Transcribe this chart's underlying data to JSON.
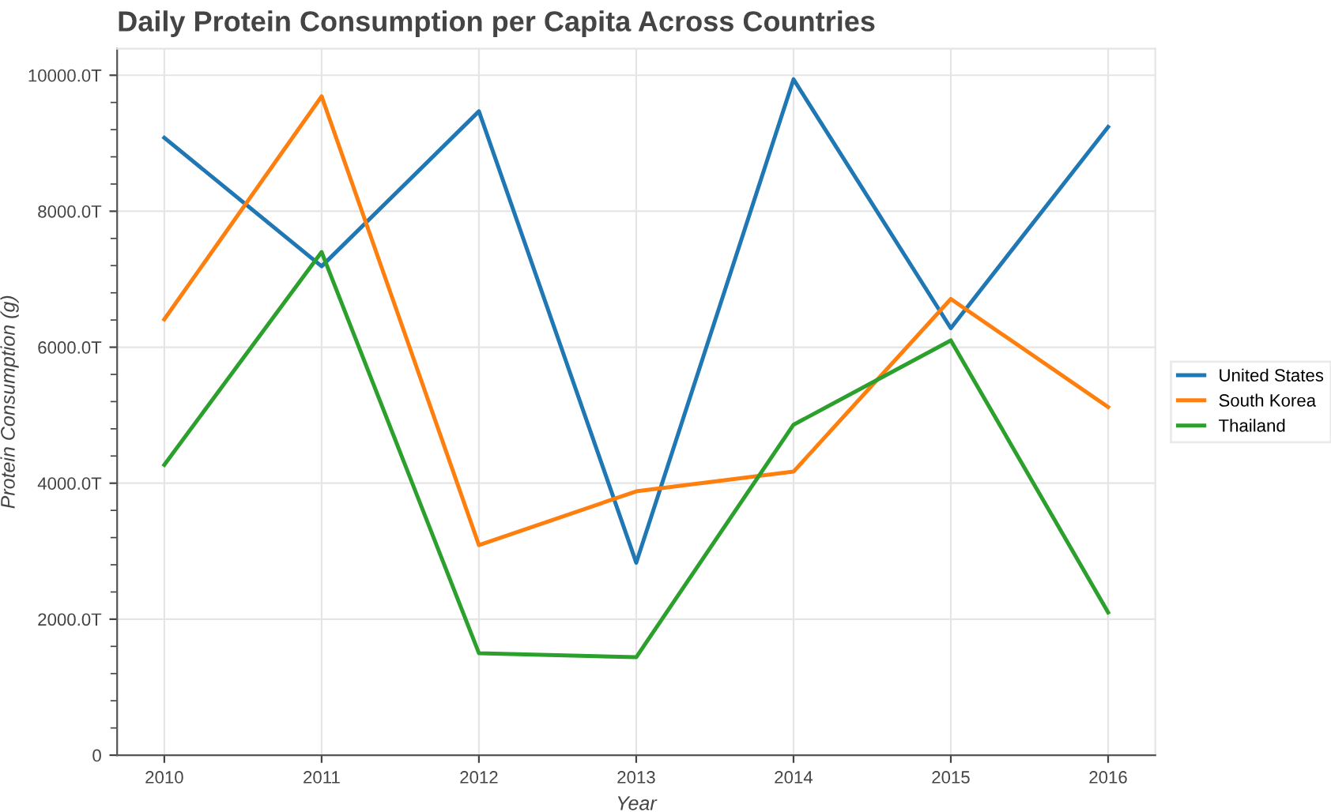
{
  "chart_data": {
    "type": "line",
    "title": "Daily Protein Consumption per Capita Across Countries",
    "xlabel": "Year",
    "ylabel": "Protein Consumption (g)",
    "x": [
      2010,
      2011,
      2012,
      2013,
      2014,
      2015,
      2016
    ],
    "series": [
      {
        "name": "United States",
        "color": "#1f77b4",
        "values": [
          9080,
          7190,
          9470,
          2830,
          9940,
          6280,
          9240
        ]
      },
      {
        "name": "South Korea",
        "color": "#ff7f0e",
        "values": [
          6410,
          9690,
          3090,
          3880,
          4170,
          6710,
          5120
        ]
      },
      {
        "name": "Thailand",
        "color": "#2ca02c",
        "values": [
          4270,
          7400,
          1500,
          1440,
          4860,
          6100,
          2100
        ]
      }
    ],
    "xlim": [
      2009.7,
      2016.3
    ],
    "xticks": [
      2010,
      2011,
      2012,
      2013,
      2014,
      2015,
      2016
    ],
    "ylim": [
      0,
      10390
    ],
    "yticks": [
      0,
      {
        "value": 2000,
        "label": "2000.0T"
      },
      {
        "value": 4000,
        "label": "4000.0T"
      },
      {
        "value": 6000,
        "label": "6000.0T"
      },
      {
        "value": 8000,
        "label": "8000.0T"
      },
      {
        "value": 10000,
        "label": "10000.0T"
      }
    ],
    "grid": true,
    "legend": "right",
    "line_style": "solid",
    "marker": "none"
  }
}
